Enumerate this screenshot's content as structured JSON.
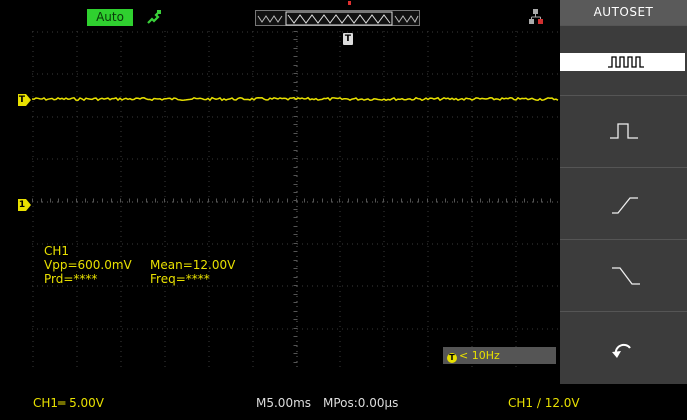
{
  "topbar": {
    "run_status": "Auto",
    "run_status_color": "#2fd02f",
    "probe_icon": "probe-icon",
    "usb_icon": "usb-icon"
  },
  "grid": {
    "trace_color": "#e8e000",
    "channel_marker": "1",
    "trigger_marker": "T"
  },
  "measurements": {
    "channel": "CH1",
    "vpp": "Vpp=600.0mV",
    "mean": "Mean=12.00V",
    "prd": "Prd=****",
    "freq": "Freq=****"
  },
  "trigger_frequency": "< 10Hz",
  "side_menu": {
    "title": "AUTOSET",
    "options": [
      {
        "name": "multi-period-icon",
        "selected": true
      },
      {
        "name": "single-period-icon",
        "selected": false
      },
      {
        "name": "rising-edge-icon",
        "selected": false
      },
      {
        "name": "falling-edge-icon",
        "selected": false
      },
      {
        "name": "undo-icon",
        "selected": false
      }
    ]
  },
  "status_bar": {
    "ch1_scale": "CH1═ 5.00V",
    "timebase": "M5.00ms",
    "mpos": "MPos:0.00µs",
    "trigger": "CH1 ∕ 12.0V"
  }
}
